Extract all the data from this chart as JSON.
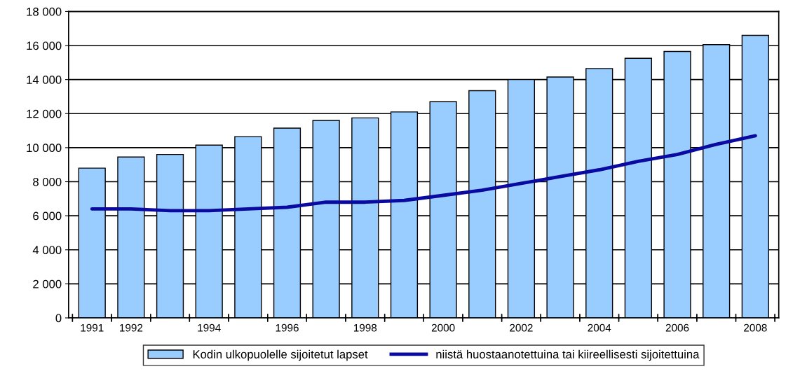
{
  "chart_data": {
    "type": "bar",
    "categories": [
      "1991",
      "1992",
      null,
      "1994",
      null,
      "1996",
      null,
      "1998",
      null,
      "2000",
      null,
      "2002",
      null,
      "2004",
      null,
      "2006",
      null,
      "2008"
    ],
    "series": [
      {
        "name": "Kodin ulkopuolelle sijoitetut lapset",
        "color": "#99ccff",
        "values": [
          8800,
          9450,
          9600,
          10150,
          10650,
          11150,
          11600,
          11750,
          12100,
          12700,
          13350,
          14000,
          14150,
          14650,
          15250,
          15650,
          16050,
          16600
        ]
      },
      {
        "name": "niistä huostaanotettuina tai kiireellisesti sijoitettuina",
        "type": "line",
        "color": "#0a0aa0",
        "values": [
          6400,
          6400,
          6300,
          6300,
          6400,
          6500,
          6800,
          6800,
          6900,
          7200,
          7500,
          7900,
          8300,
          8700,
          9200,
          9600,
          10200,
          10700
        ]
      }
    ],
    "ylim": [
      0,
      18000
    ],
    "yticks": [
      {
        "value": 0,
        "label": "0"
      },
      {
        "value": 2000,
        "label": "2 000"
      },
      {
        "value": 4000,
        "label": "4 000"
      },
      {
        "value": 6000,
        "label": "6 000"
      },
      {
        "value": 8000,
        "label": "8 000"
      },
      {
        "value": 10000,
        "label": "10 000"
      },
      {
        "value": 12000,
        "label": "12 000"
      },
      {
        "value": 14000,
        "label": "14 000"
      },
      {
        "value": 16000,
        "label": "16 000"
      },
      {
        "value": 18000,
        "label": "18 000"
      }
    ],
    "grid": "y",
    "legend": "bottom",
    "marker": "none",
    "line_style": "solid"
  }
}
